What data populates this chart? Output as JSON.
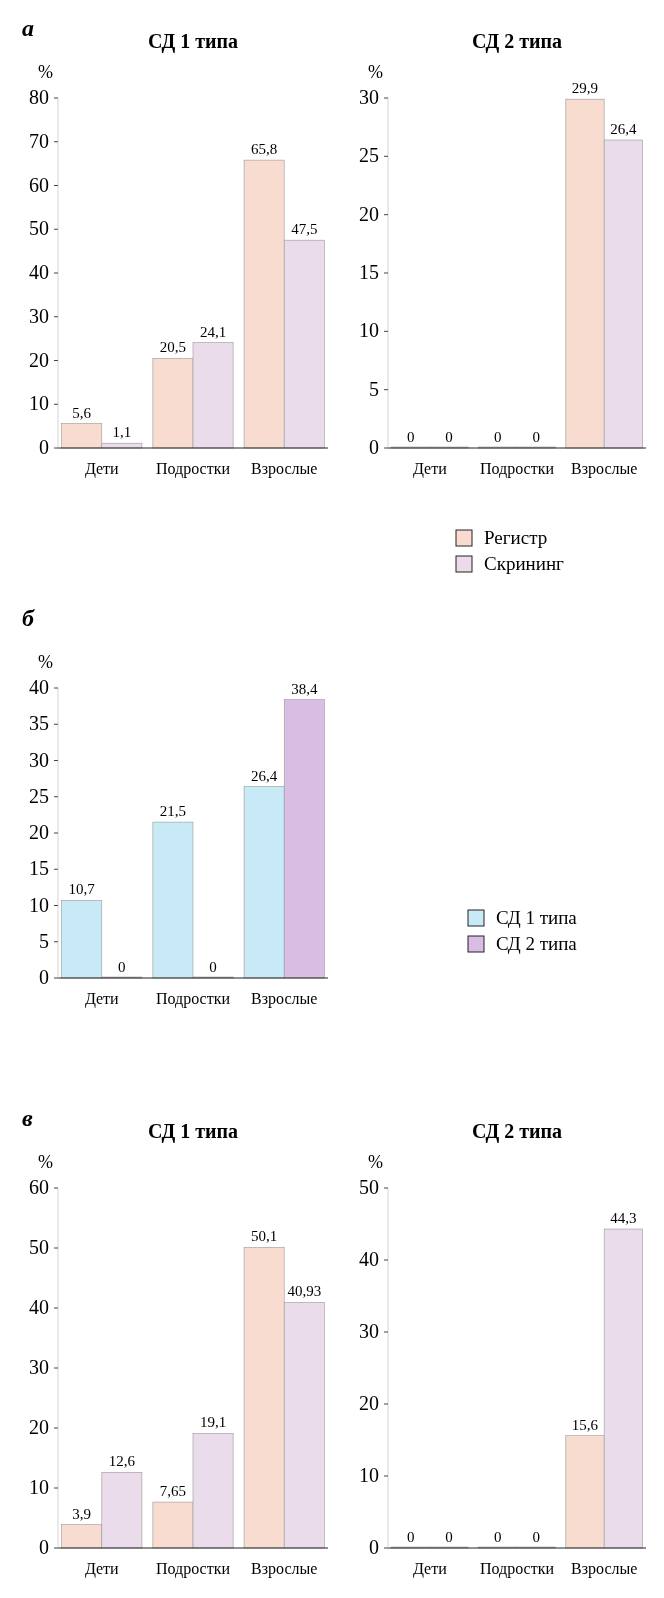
{
  "chart_data": [
    {
      "type": "bar",
      "title": "СД 1 типа",
      "ylabel": "%",
      "annotations": [
        "a"
      ],
      "categories": [
        "Дети",
        "Подростки",
        "Взрослые"
      ],
      "series": [
        {
          "color": "#f8dccf",
          "values": [
            5.6,
            20.5,
            65.8
          ],
          "value_labels": [
            "5,6",
            "20,5",
            "65,8"
          ]
        },
        {
          "color": "#eadcea",
          "values": [
            1.1,
            24.1,
            47.5
          ],
          "value_labels": [
            "1,1",
            "24,1",
            "47,5"
          ]
        }
      ],
      "ylim": [
        0,
        80
      ],
      "yticks": [
        0,
        10,
        20,
        30,
        40,
        50,
        60,
        70,
        80
      ],
      "legend": false
    },
    {
      "type": "bar",
      "title": "СД 2 типа",
      "ylabel": "%",
      "categories": [
        "Дети",
        "Подростки",
        "Взрослые"
      ],
      "series": [
        {
          "name": "Регистр",
          "color": "#f8dccf",
          "values": [
            0,
            0,
            29.9
          ],
          "value_labels": [
            "0",
            "0",
            "29,9"
          ]
        },
        {
          "name": "Скрининг",
          "color": "#eadcea",
          "values": [
            0,
            0,
            26.4
          ],
          "value_labels": [
            "0",
            "0",
            "26,4"
          ]
        }
      ],
      "ylim": [
        0,
        30
      ],
      "yticks": [
        0,
        5,
        10,
        15,
        20,
        25,
        30
      ],
      "legend": "bottom"
    },
    {
      "type": "bar",
      "ylabel": "%",
      "annotations": [
        "б"
      ],
      "categories": [
        "Дети",
        "Подростки",
        "Взрослые"
      ],
      "series": [
        {
          "name": "СД 1 типа",
          "color": "#c8e9f6",
          "values": [
            10.7,
            21.5,
            26.4
          ],
          "value_labels": [
            "10,7",
            "21,5",
            "26,4"
          ]
        },
        {
          "name": "СД 2 типа",
          "color": "#d9bde3",
          "values": [
            0,
            0,
            38.4
          ],
          "value_labels": [
            "0",
            "0",
            "38,4"
          ]
        }
      ],
      "ylim": [
        0,
        40
      ],
      "yticks": [
        0,
        5,
        10,
        15,
        20,
        25,
        30,
        35,
        40
      ],
      "legend": "right"
    },
    {
      "type": "bar",
      "title": "СД 1 типа",
      "ylabel": "%",
      "annotations": [
        "в"
      ],
      "categories": [
        "Дети",
        "Подростки",
        "Взрослые"
      ],
      "series": [
        {
          "color": "#f8dccf",
          "values": [
            3.9,
            7.65,
            50.1
          ],
          "value_labels": [
            "3,9",
            "7,65",
            "50,1"
          ]
        },
        {
          "color": "#eadcea",
          "values": [
            12.6,
            19.1,
            40.93
          ],
          "value_labels": [
            "12,6",
            "19,1",
            "40,93"
          ]
        }
      ],
      "ylim": [
        0,
        60
      ],
      "yticks": [
        0,
        10,
        20,
        30,
        40,
        50,
        60
      ],
      "legend": false
    },
    {
      "type": "bar",
      "title": "СД 2 типа",
      "ylabel": "%",
      "categories": [
        "Дети",
        "Подростки",
        "Взрослые"
      ],
      "series": [
        {
          "color": "#f8dccf",
          "values": [
            0,
            0,
            15.6
          ],
          "value_labels": [
            "0",
            "0",
            "15,6"
          ]
        },
        {
          "color": "#eadcea",
          "values": [
            0,
            0,
            44.3
          ],
          "value_labels": [
            "0",
            "0",
            "44,3"
          ]
        }
      ],
      "ylim": [
        0,
        50
      ],
      "yticks": [
        0,
        10,
        20,
        30,
        40,
        50
      ],
      "legend": false
    }
  ]
}
